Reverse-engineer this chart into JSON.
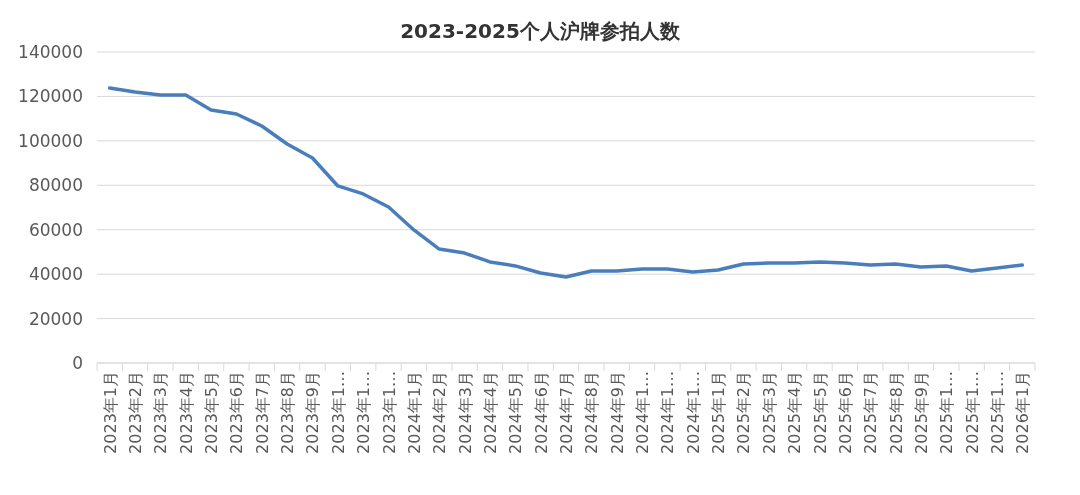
{
  "chart_data": {
    "type": "line",
    "title": "2023-2025个人沪牌参拍人数",
    "categories": [
      "2023年1月",
      "2023年2月",
      "2023年3月",
      "2023年4月",
      "2023年5月",
      "2023年6月",
      "2023年7月",
      "2023年8月",
      "2023年9月",
      "2023年1…",
      "2023年1…",
      "2023年1…",
      "2024年1月",
      "2024年2月",
      "2024年3月",
      "2024年4月",
      "2024年5月",
      "2024年6月",
      "2024年7月",
      "2024年8月",
      "2024年9月",
      "2024年1…",
      "2024年1…",
      "2024年1…",
      "2025年1月",
      "2025年2月",
      "2025年3月",
      "2025年4月",
      "2025年5月",
      "2025年6月",
      "2025年7月",
      "2025年8月",
      "2025年9月",
      "2025年1…",
      "2025年1…",
      "2025年1…",
      "2026年1月"
    ],
    "series": [
      {
        "color": "#4a7ebb",
        "values": [
          123800,
          122000,
          120600,
          120600,
          113900,
          112100,
          106700,
          98600,
          92300,
          79700,
          76100,
          70200,
          59900,
          51300,
          49500,
          45500,
          43700,
          40500,
          38700,
          41400,
          41400,
          42300,
          42300,
          41000,
          41900,
          44600,
          45000,
          45000,
          45500,
          45000,
          44100,
          44600,
          43200,
          43700,
          41400,
          42800,
          44100
        ]
      }
    ],
    "ylim": [
      0,
      140000
    ],
    "yticks": [
      0,
      20000,
      40000,
      60000,
      80000,
      100000,
      120000,
      140000
    ],
    "grid": "y",
    "marker": "none",
    "line_style": "solid"
  }
}
